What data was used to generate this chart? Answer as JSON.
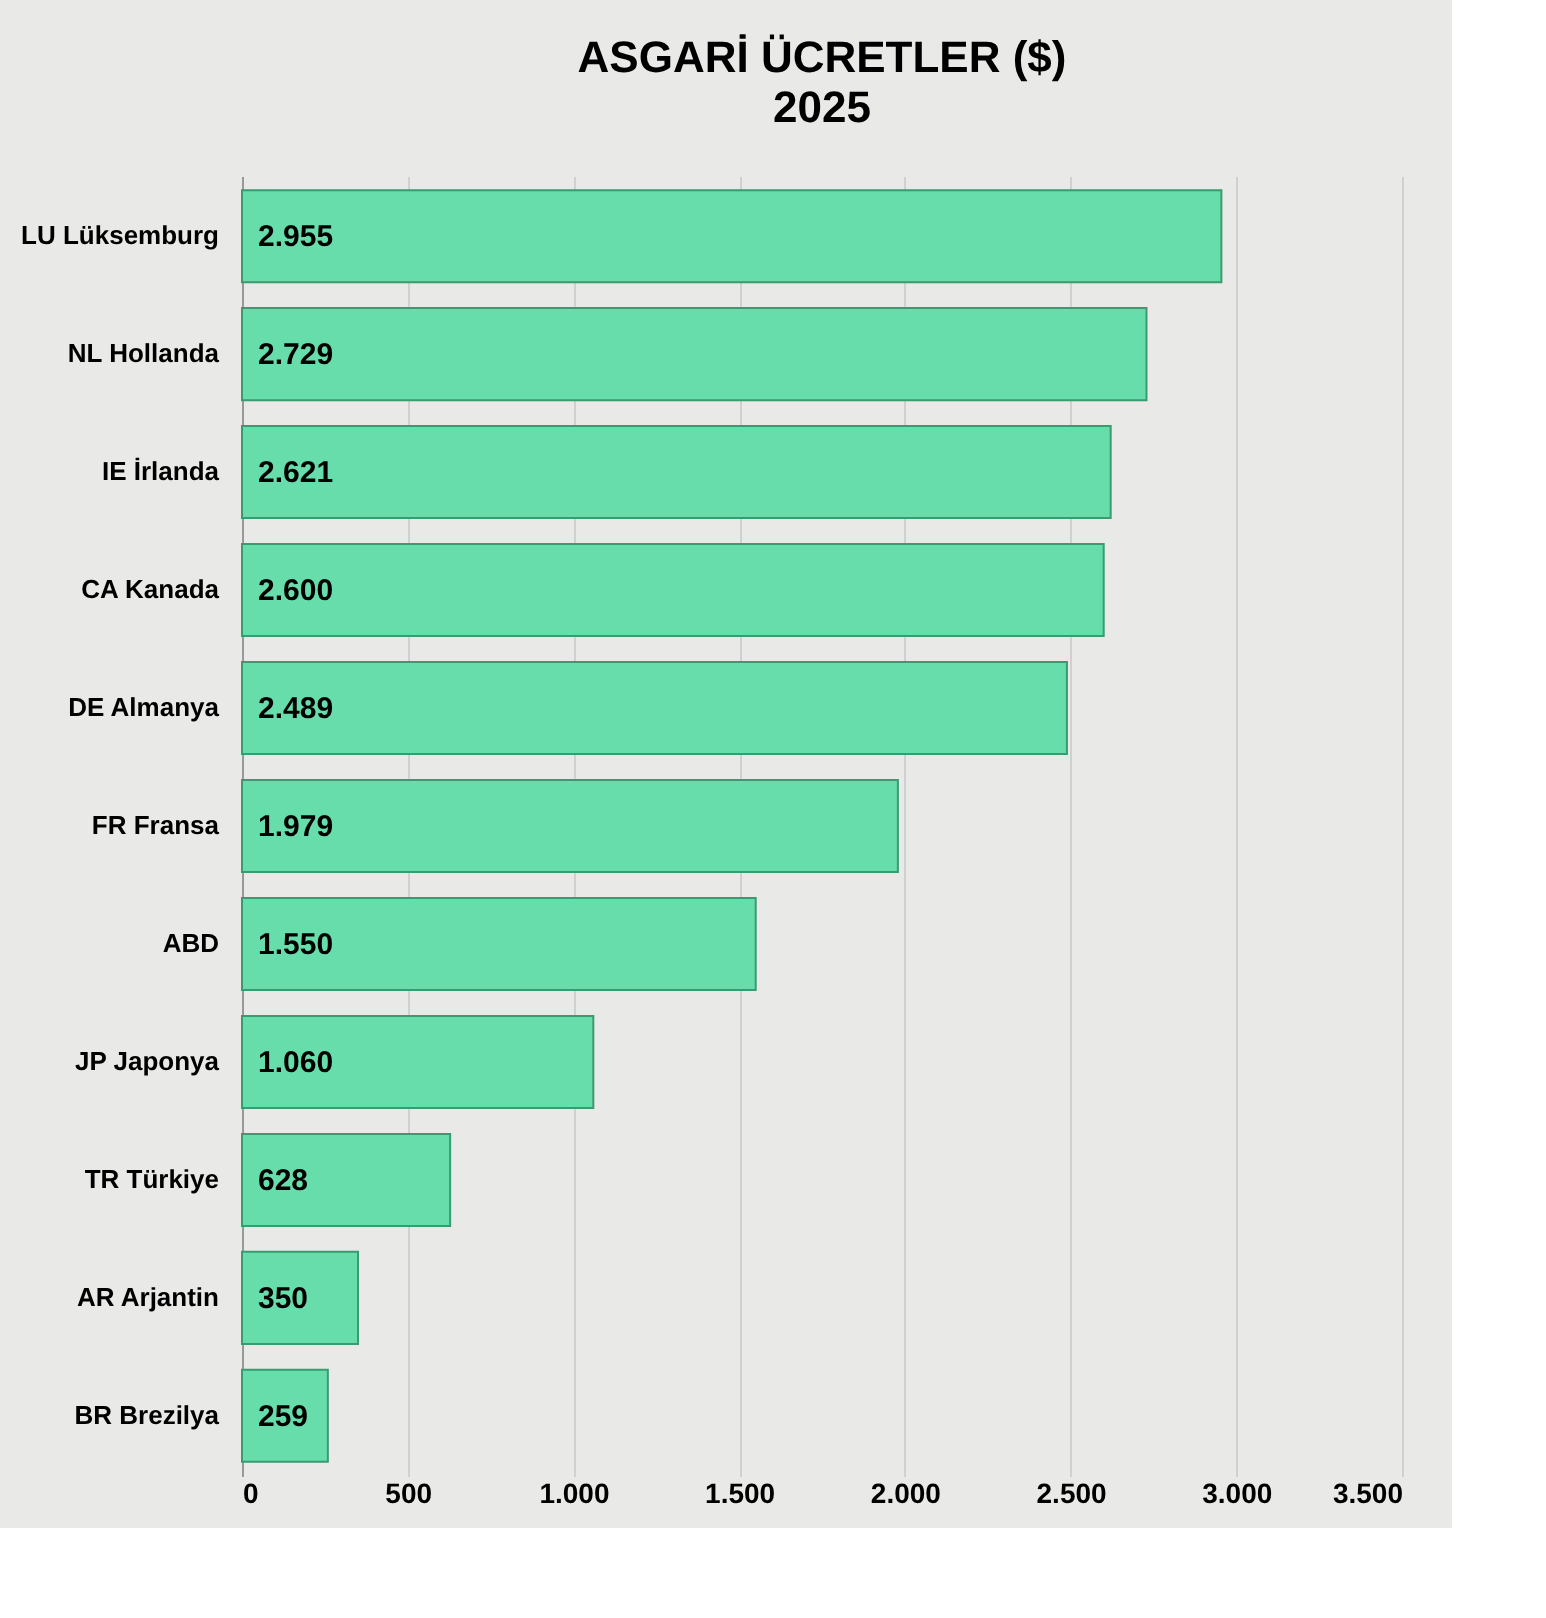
{
  "chart_data": {
    "type": "bar",
    "orientation": "horizontal",
    "title": "ASGARİ ÜCRETLER  ($)",
    "subtitle": "2025",
    "categories": [
      "LU Lüksemburg",
      "NL Hollanda",
      "IE İrlanda",
      "CA Kanada",
      "DE Almanya",
      "FR Fransa",
      "ABD",
      "JP Japonya",
      "TR Türkiye",
      "AR Arjantin",
      "BR Brezilya"
    ],
    "values": [
      2955,
      2729,
      2621,
      2600,
      2489,
      1979,
      1550,
      1060,
      628,
      350,
      259
    ],
    "value_labels": [
      "2.955",
      "2.729",
      "2.621",
      "2.600",
      "2.489",
      "1.979",
      "1.550",
      "1.060",
      "628",
      "350",
      "259"
    ],
    "color": "#66ddab",
    "xlim": [
      0,
      3500
    ],
    "xticks": [
      0,
      500,
      {
        "value": 1000,
        "label": "1.000"
      },
      {
        "value": 1500,
        "label": "1.500"
      },
      {
        "value": 2000,
        "label": "2.000"
      },
      {
        "value": 2500,
        "label": "2.500"
      },
      {
        "value": 3000,
        "label": "3.000"
      },
      {
        "value": 3500,
        "label": "3.500"
      }
    ],
    "grid": "x"
  }
}
